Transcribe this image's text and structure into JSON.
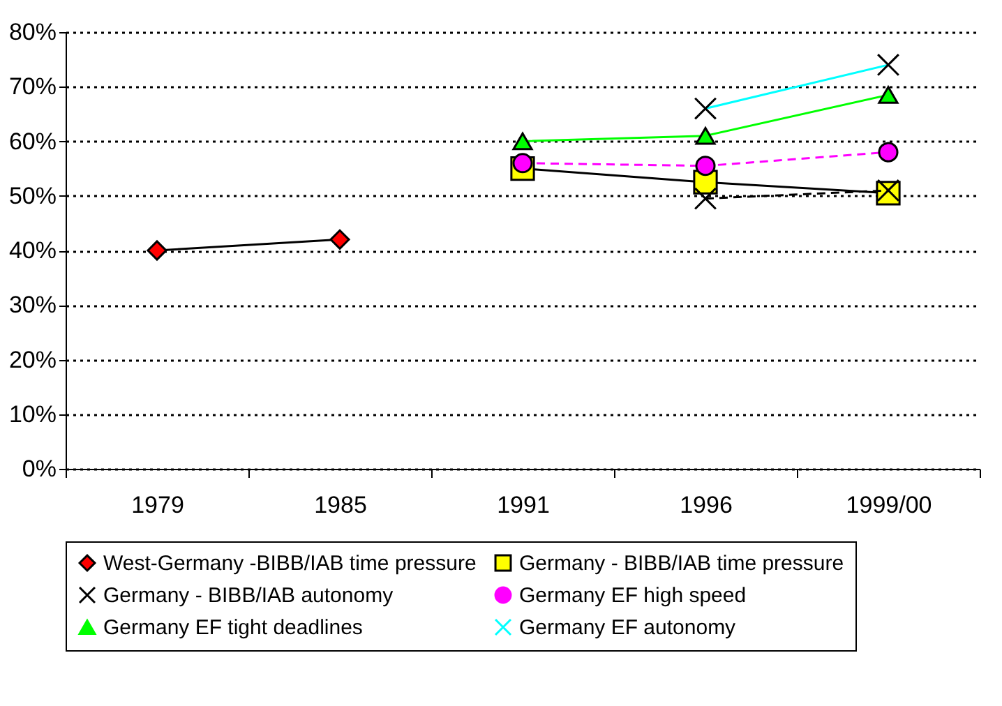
{
  "chart_data": {
    "type": "line",
    "categories": [
      "1979",
      "1985",
      "1991",
      "1996",
      "1999/00"
    ],
    "series": [
      {
        "name": "West-Germany -BIBB/IAB time pressure",
        "color": "#000000",
        "colors": [
          "#ff0000",
          "#ff0000",
          null,
          null,
          null
        ],
        "marker": "diamond",
        "values": [
          40,
          42,
          null,
          null,
          null
        ]
      },
      {
        "name": "Germany - BIBB/IAB time pressure",
        "color": "#000000",
        "colors": [
          null,
          null,
          "#ffff00",
          "#ffff00",
          "#ffff00"
        ],
        "marker": "square",
        "values": [
          null,
          null,
          55,
          52.5,
          50.5
        ]
      },
      {
        "name": "Germany - BIBB/IAB autonomy",
        "color": "#000000",
        "colors": [
          null,
          null,
          null,
          "#000000",
          "#000000"
        ],
        "marker": "cross",
        "line_style": "dashed",
        "values": [
          null,
          null,
          null,
          49.5,
          51
        ]
      },
      {
        "name": "Germany EF high speed",
        "color": "#ff00ff",
        "colors": [
          null,
          null,
          "#ff00ff",
          "#ff00ff",
          "#ff00ff"
        ],
        "marker": "circle",
        "line_style": "dashed",
        "values": [
          null,
          null,
          56,
          55.5,
          58
        ]
      },
      {
        "name": "Germany EF tight deadlines",
        "color": "#00ff00",
        "colors": [
          null,
          null,
          "#00ff00",
          "#00ff00",
          "#00ff00"
        ],
        "marker": "triangle",
        "values": [
          null,
          null,
          60,
          61,
          68.5
        ]
      },
      {
        "name": "Germany EF autonomy",
        "color": "#00ffff",
        "colors": [
          null,
          null,
          null,
          "#000000",
          "#000000"
        ],
        "marker": "cross",
        "values": [
          null,
          null,
          null,
          66,
          74
        ]
      }
    ],
    "ylim": [
      0,
      80
    ],
    "yticks": [
      {
        "value": 0,
        "label": "0%"
      },
      {
        "value": 10,
        "label": "10%"
      },
      {
        "value": 20,
        "label": "20%"
      },
      {
        "value": 30,
        "label": "30%"
      },
      {
        "value": 40,
        "label": "40%"
      },
      {
        "value": 50,
        "label": "50%"
      },
      {
        "value": 60,
        "label": "60%"
      },
      {
        "value": 70,
        "label": "70%"
      },
      {
        "value": 80,
        "label": "80%"
      }
    ],
    "grid": "y",
    "legend": "bottom"
  }
}
